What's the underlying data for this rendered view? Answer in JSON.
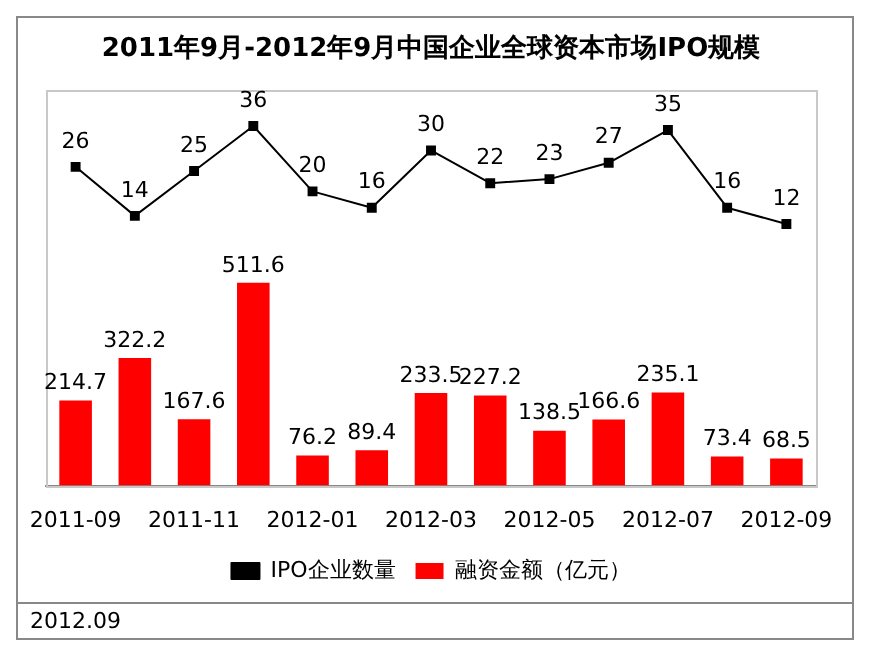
{
  "chart_data": {
    "type": "bar",
    "title": "2011年9月-2012年9月中国企业全球资本市场IPO规模",
    "categories": [
      "2011-09",
      null,
      "2011-11",
      null,
      "2012-01",
      null,
      "2012-03",
      null,
      "2012-05",
      null,
      "2012-07",
      null,
      "2012-09"
    ],
    "series": [
      {
        "name": "融资金额（亿元）",
        "color": "#ff0000",
        "values": [
          214.7,
          322.2,
          167.6,
          511.6,
          76.2,
          89.4,
          233.5,
          227.2,
          138.5,
          166.6,
          235.1,
          73.4,
          68.5
        ]
      },
      {
        "name": "IPO企业数量",
        "type": "line",
        "color": "#000000",
        "axis": "y2",
        "values": [
          26,
          14,
          25,
          36,
          20,
          16,
          30,
          22,
          23,
          27,
          35,
          16,
          12
        ]
      }
    ],
    "ylim": [
      0,
      1000
    ],
    "y2lim": [
      -52,
      45
    ],
    "tick_labels": "x",
    "marker": "square",
    "legend": "bottom",
    "grid": false,
    "data_labels": true,
    "annotations": [
      "2012.09"
    ]
  }
}
